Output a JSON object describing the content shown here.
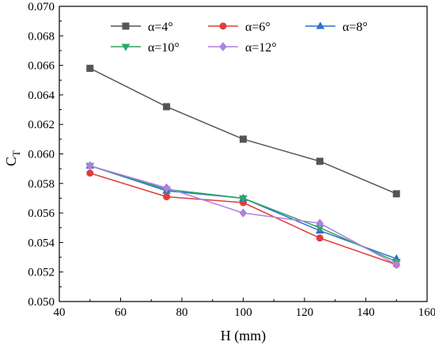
{
  "chart_data": {
    "type": "line",
    "title": "",
    "xlabel": "H (mm)",
    "ylabel_main": "C",
    "ylabel_sub": "T",
    "xlim": [
      40,
      160
    ],
    "ylim": [
      0.05,
      0.07
    ],
    "xticks": [
      "40",
      "60",
      "80",
      "100",
      "120",
      "140",
      "160"
    ],
    "yticks": [
      "0.050",
      "0.052",
      "0.054",
      "0.056",
      "0.058",
      "0.060",
      "0.062",
      "0.064",
      "0.066",
      "0.068",
      "0.070"
    ],
    "grid": false,
    "legend_position": "top",
    "x": [
      50,
      75,
      100,
      125,
      150
    ],
    "series": [
      {
        "name": "α=4°",
        "color": "#555555",
        "marker": "square",
        "values": [
          0.0658,
          0.0632,
          0.061,
          0.0595,
          0.0573
        ]
      },
      {
        "name": "α=6°",
        "color": "#e03c3c",
        "marker": "circle",
        "values": [
          0.0587,
          0.0571,
          0.0567,
          0.0543,
          0.0525
        ]
      },
      {
        "name": "α=8°",
        "color": "#2f6fcf",
        "marker": "triangle-up",
        "values": [
          0.0592,
          0.0575,
          0.057,
          0.0548,
          0.0529
        ]
      },
      {
        "name": "α=10°",
        "color": "#2ca860",
        "marker": "triangle-down",
        "values": [
          0.0592,
          0.0576,
          0.057,
          0.055,
          0.0527
        ]
      },
      {
        "name": "α=12°",
        "color": "#b07fe0",
        "marker": "diamond",
        "values": [
          0.0592,
          0.0577,
          0.056,
          0.0553,
          0.0525
        ]
      }
    ]
  }
}
